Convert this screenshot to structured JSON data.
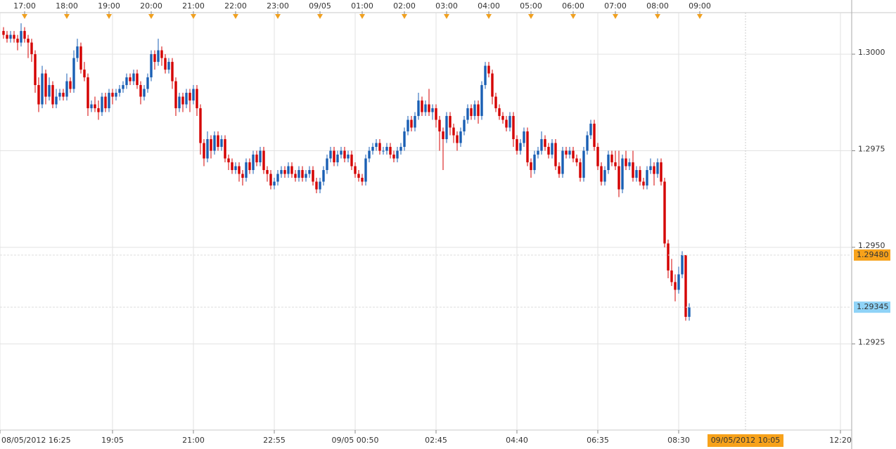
{
  "chart_data": {
    "type": "candlestick",
    "up_color": "#1a5fb4",
    "down_color": "#d40000",
    "grid": true,
    "xlim": [
      -1,
      240
    ],
    "ylim": [
      1.29027,
      1.30082
    ],
    "yticks": [
      {
        "value": 1.3,
        "label": "1.3000"
      },
      1.2975,
      {
        "value": 1.295,
        "label": "1.2950"
      },
      1.2925
    ],
    "xticks": [
      {
        "value": -1,
        "label": "08/05/2012 16:25"
      },
      {
        "value": 31,
        "label": "19:05"
      },
      {
        "value": 54,
        "label": "21:00"
      },
      {
        "value": 77,
        "label": "22:55"
      },
      {
        "value": 100,
        "label": "09/05 00:50"
      },
      {
        "value": 123,
        "label": "02:45"
      },
      {
        "value": 146,
        "label": "04:40"
      },
      {
        "value": 169,
        "label": "06:35"
      },
      {
        "value": 192,
        "label": "08:30"
      },
      {
        "value": 238,
        "label": "12:20"
      }
    ],
    "top_xticks": [
      {
        "value": 6,
        "label": "17:00"
      },
      {
        "value": 18,
        "label": "18:00"
      },
      {
        "value": 30,
        "label": "19:00"
      },
      {
        "value": 42,
        "label": "20:00"
      },
      {
        "value": 54,
        "label": "21:00"
      },
      {
        "value": 66,
        "label": "22:00"
      },
      {
        "value": 78,
        "label": "23:00"
      },
      {
        "value": 90,
        "label": "09/05"
      },
      {
        "value": 102,
        "label": "01:00"
      },
      {
        "value": 114,
        "label": "02:00"
      },
      {
        "value": 126,
        "label": "03:00"
      },
      {
        "value": 138,
        "label": "04:00"
      },
      {
        "value": 150,
        "label": "05:00"
      },
      {
        "value": 162,
        "label": "06:00"
      },
      {
        "value": 174,
        "label": "07:00"
      },
      {
        "value": 186,
        "label": "08:00"
      },
      {
        "value": 198,
        "label": "09:00"
      }
    ],
    "price_tags": [
      {
        "value": 1.2948,
        "label": "1.29480",
        "color": "#f7a21b"
      },
      {
        "value": 1.29345,
        "label": "1.29345",
        "color": "#8fd3f7"
      }
    ],
    "time_marker": {
      "value": 211,
      "label": "09/05/2012 10:05",
      "color": "#f7a21b"
    },
    "ohlc": [
      [
        1.3006,
        1.3007,
        1.3004,
        1.3005
      ],
      [
        1.3005,
        1.3006,
        1.3003,
        1.3004
      ],
      [
        1.3004,
        1.3006,
        1.3003,
        1.3005
      ],
      [
        1.3005,
        1.3006,
        1.3003,
        1.3004
      ],
      [
        1.3004,
        1.3005,
        1.3001,
        1.3003
      ],
      [
        1.3003,
        1.3008,
        1.3002,
        1.3006
      ],
      [
        1.3006,
        1.3007,
        1.3003,
        1.3004
      ],
      [
        1.3004,
        1.3005,
        1.2999,
        1.3003
      ],
      [
        1.3003,
        1.3004,
        1.2998,
        1.3
      ],
      [
        1.3,
        1.3001,
        1.299,
        1.2992
      ],
      [
        1.2992,
        1.2994,
        1.2985,
        1.2987
      ],
      [
        1.2987,
        1.2997,
        1.2986,
        1.2995
      ],
      [
        1.2995,
        1.2996,
        1.2987,
        1.2989
      ],
      [
        1.2989,
        1.2994,
        1.2988,
        1.2992
      ],
      [
        1.2992,
        1.2993,
        1.2986,
        1.2987
      ],
      [
        1.2987,
        1.2991,
        1.2986,
        1.2989
      ],
      [
        1.2989,
        1.2991,
        1.2988,
        1.299
      ],
      [
        1.299,
        1.2991,
        1.2988,
        1.2989
      ],
      [
        1.2989,
        1.2995,
        1.2988,
        1.2993
      ],
      [
        1.2993,
        1.2994,
        1.299,
        1.2991
      ],
      [
        1.2991,
        1.3001,
        1.299,
        1.2999
      ],
      [
        1.2999,
        1.3004,
        1.2998,
        1.3002
      ],
      [
        1.3002,
        1.3003,
        1.2995,
        1.2996
      ],
      [
        1.2996,
        1.2998,
        1.2993,
        1.2994
      ],
      [
        1.2994,
        1.2995,
        1.2984,
        1.2986
      ],
      [
        1.2986,
        1.2988,
        1.2985,
        1.2987
      ],
      [
        1.2987,
        1.2989,
        1.2985,
        1.2986
      ],
      [
        1.2986,
        1.2988,
        1.2983,
        1.2985
      ],
      [
        1.2985,
        1.299,
        1.2984,
        1.2989
      ],
      [
        1.2989,
        1.299,
        1.2985,
        1.2986
      ],
      [
        1.2986,
        1.2991,
        1.2985,
        1.299
      ],
      [
        1.299,
        1.2991,
        1.2987,
        1.2989
      ],
      [
        1.2989,
        1.2991,
        1.2988,
        1.299
      ],
      [
        1.299,
        1.2992,
        1.2989,
        1.2991
      ],
      [
        1.2991,
        1.2993,
        1.299,
        1.2992
      ],
      [
        1.2992,
        1.2995,
        1.2991,
        1.2994
      ],
      [
        1.2994,
        1.2995,
        1.2992,
        1.2993
      ],
      [
        1.2993,
        1.2996,
        1.2992,
        1.2995
      ],
      [
        1.2995,
        1.2996,
        1.2991,
        1.2992
      ],
      [
        1.2992,
        1.2993,
        1.2987,
        1.2989
      ],
      [
        1.2989,
        1.2992,
        1.2988,
        1.2991
      ],
      [
        1.2991,
        1.2995,
        1.299,
        1.2994
      ],
      [
        1.2994,
        1.3001,
        1.2993,
        1.3
      ],
      [
        1.3,
        1.3001,
        1.2996,
        1.2998
      ],
      [
        1.2998,
        1.3004,
        1.2997,
        1.3001
      ],
      [
        1.3001,
        1.3002,
        1.2997,
        1.2999
      ],
      [
        1.2999,
        1.3,
        1.2995,
        1.2996
      ],
      [
        1.2996,
        1.2999,
        1.2995,
        1.2998
      ],
      [
        1.2998,
        1.2999,
        1.2991,
        1.2993
      ],
      [
        1.2993,
        1.2994,
        1.2984,
        1.2986
      ],
      [
        1.2986,
        1.299,
        1.2985,
        1.2989
      ],
      [
        1.2989,
        1.299,
        1.2985,
        1.2987
      ],
      [
        1.2987,
        1.2991,
        1.2986,
        1.299
      ],
      [
        1.299,
        1.2991,
        1.2985,
        1.2988
      ],
      [
        1.2988,
        1.2992,
        1.2987,
        1.2991
      ],
      [
        1.2991,
        1.2992,
        1.2984,
        1.2986
      ],
      [
        1.2986,
        1.2987,
        1.2974,
        1.2977
      ],
      [
        1.2977,
        1.2978,
        1.2971,
        1.2973
      ],
      [
        1.2973,
        1.298,
        1.2972,
        1.2978
      ],
      [
        1.2978,
        1.2979,
        1.2973,
        1.2975
      ],
      [
        1.2975,
        1.298,
        1.2974,
        1.2979
      ],
      [
        1.2979,
        1.298,
        1.2975,
        1.2976
      ],
      [
        1.2976,
        1.2979,
        1.2975,
        1.2978
      ],
      [
        1.2978,
        1.2979,
        1.2972,
        1.2973
      ],
      [
        1.2973,
        1.2974,
        1.297,
        1.2972
      ],
      [
        1.2972,
        1.2973,
        1.2969,
        1.297
      ],
      [
        1.297,
        1.2972,
        1.2969,
        1.2971
      ],
      [
        1.2971,
        1.2972,
        1.2967,
        1.2969
      ],
      [
        1.2969,
        1.297,
        1.2966,
        1.2968
      ],
      [
        1.2968,
        1.2973,
        1.2967,
        1.2972
      ],
      [
        1.2972,
        1.2973,
        1.2969,
        1.297
      ],
      [
        1.297,
        1.2975,
        1.2969,
        1.2974
      ],
      [
        1.2974,
        1.2975,
        1.2971,
        1.2972
      ],
      [
        1.2972,
        1.2976,
        1.2971,
        1.2975
      ],
      [
        1.2975,
        1.2976,
        1.2969,
        1.297
      ],
      [
        1.297,
        1.2971,
        1.2967,
        1.2969
      ],
      [
        1.2969,
        1.297,
        1.2965,
        1.2966
      ],
      [
        1.2966,
        1.2968,
        1.2965,
        1.2967
      ],
      [
        1.2967,
        1.297,
        1.2966,
        1.2969
      ],
      [
        1.2969,
        1.2971,
        1.2968,
        1.297
      ],
      [
        1.297,
        1.2971,
        1.2968,
        1.2969
      ],
      [
        1.2969,
        1.2972,
        1.2968,
        1.2971
      ],
      [
        1.2971,
        1.2972,
        1.2968,
        1.2969
      ],
      [
        1.2969,
        1.297,
        1.2967,
        1.2968
      ],
      [
        1.2968,
        1.2971,
        1.2967,
        1.297
      ],
      [
        1.297,
        1.2971,
        1.2967,
        1.2968
      ],
      [
        1.2968,
        1.297,
        1.2967,
        1.2969
      ],
      [
        1.2969,
        1.2971,
        1.2968,
        1.297
      ],
      [
        1.297,
        1.2971,
        1.2966,
        1.2967
      ],
      [
        1.2967,
        1.2968,
        1.2964,
        1.2965
      ],
      [
        1.2965,
        1.2968,
        1.2964,
        1.2967
      ],
      [
        1.2967,
        1.2971,
        1.2966,
        1.297
      ],
      [
        1.297,
        1.2974,
        1.2969,
        1.2973
      ],
      [
        1.2973,
        1.2976,
        1.2972,
        1.2975
      ],
      [
        1.2975,
        1.2976,
        1.2971,
        1.2972
      ],
      [
        1.2972,
        1.2975,
        1.2971,
        1.2974
      ],
      [
        1.2974,
        1.2976,
        1.2973,
        1.2975
      ],
      [
        1.2975,
        1.2976,
        1.2972,
        1.2973
      ],
      [
        1.2973,
        1.2975,
        1.2972,
        1.2974
      ],
      [
        1.2974,
        1.2975,
        1.297,
        1.2971
      ],
      [
        1.2971,
        1.2972,
        1.2968,
        1.2969
      ],
      [
        1.2969,
        1.297,
        1.2967,
        1.2968
      ],
      [
        1.2968,
        1.2969,
        1.2966,
        1.2967
      ],
      [
        1.2967,
        1.2974,
        1.2966,
        1.2973
      ],
      [
        1.2973,
        1.2976,
        1.2972,
        1.2975
      ],
      [
        1.2975,
        1.2977,
        1.2974,
        1.2976
      ],
      [
        1.2976,
        1.2978,
        1.2975,
        1.2977
      ],
      [
        1.2977,
        1.2978,
        1.2974,
        1.2975
      ],
      [
        1.2975,
        1.2976,
        1.2974,
        1.2975
      ],
      [
        1.2975,
        1.2977,
        1.2974,
        1.2976
      ],
      [
        1.2976,
        1.2977,
        1.2973,
        1.2974
      ],
      [
        1.2974,
        1.2975,
        1.2972,
        1.2973
      ],
      [
        1.2973,
        1.2976,
        1.2972,
        1.2975
      ],
      [
        1.2975,
        1.2977,
        1.2974,
        1.2976
      ],
      [
        1.2976,
        1.2981,
        1.2975,
        1.298
      ],
      [
        1.298,
        1.2984,
        1.2979,
        1.2983
      ],
      [
        1.2983,
        1.2984,
        1.298,
        1.2981
      ],
      [
        1.2981,
        1.2985,
        1.298,
        1.2984
      ],
      [
        1.2984,
        1.299,
        1.2983,
        1.2988
      ],
      [
        1.2988,
        1.2989,
        1.2984,
        1.2985
      ],
      [
        1.2985,
        1.2988,
        1.2984,
        1.2987
      ],
      [
        1.2987,
        1.2991,
        1.2984,
        1.2985
      ],
      [
        1.2985,
        1.2987,
        1.2983,
        1.2986
      ],
      [
        1.2986,
        1.2987,
        1.2981,
        1.2983
      ],
      [
        1.2983,
        1.2984,
        1.2975,
        1.298
      ],
      [
        1.298,
        1.2981,
        1.297,
        1.2978
      ],
      [
        1.2978,
        1.2985,
        1.2977,
        1.2984
      ],
      [
        1.2984,
        1.2985,
        1.2979,
        1.2981
      ],
      [
        1.2981,
        1.2982,
        1.2977,
        1.2979
      ],
      [
        1.2979,
        1.298,
        1.2975,
        1.2977
      ],
      [
        1.2977,
        1.2981,
        1.2976,
        1.298
      ],
      [
        1.298,
        1.2984,
        1.2979,
        1.2983
      ],
      [
        1.2983,
        1.2987,
        1.2982,
        1.2986
      ],
      [
        1.2986,
        1.2987,
        1.2983,
        1.2984
      ],
      [
        1.2984,
        1.2988,
        1.2983,
        1.2987
      ],
      [
        1.2987,
        1.2988,
        1.2982,
        1.2984
      ],
      [
        1.2984,
        1.2993,
        1.2983,
        1.2992
      ],
      [
        1.2992,
        1.2998,
        1.2991,
        1.2997
      ],
      [
        1.2997,
        1.2998,
        1.2994,
        1.2995
      ],
      [
        1.2995,
        1.2996,
        1.2987,
        1.2989
      ],
      [
        1.2989,
        1.299,
        1.2985,
        1.2986
      ],
      [
        1.2986,
        1.2987,
        1.2983,
        1.2984
      ],
      [
        1.2984,
        1.2985,
        1.2982,
        1.2983
      ],
      [
        1.2983,
        1.2984,
        1.298,
        1.2981
      ],
      [
        1.2981,
        1.2985,
        1.298,
        1.2984
      ],
      [
        1.2984,
        1.2985,
        1.2976,
        1.2978
      ],
      [
        1.2978,
        1.2979,
        1.2974,
        1.2975
      ],
      [
        1.2975,
        1.2978,
        1.2974,
        1.2977
      ],
      [
        1.2977,
        1.2981,
        1.2976,
        1.298
      ],
      [
        1.298,
        1.2981,
        1.2971,
        1.2972
      ],
      [
        1.2972,
        1.2973,
        1.2968,
        1.297
      ],
      [
        1.297,
        1.2975,
        1.2969,
        1.2974
      ],
      [
        1.2974,
        1.2976,
        1.2973,
        1.2975
      ],
      [
        1.2975,
        1.298,
        1.2974,
        1.2978
      ],
      [
        1.2978,
        1.2979,
        1.2975,
        1.2976
      ],
      [
        1.2976,
        1.2977,
        1.2973,
        1.2974
      ],
      [
        1.2974,
        1.2978,
        1.2973,
        1.2977
      ],
      [
        1.2977,
        1.2978,
        1.297,
        1.2971
      ],
      [
        1.2971,
        1.2972,
        1.2968,
        1.2969
      ],
      [
        1.2969,
        1.2976,
        1.2968,
        1.2975
      ],
      [
        1.2975,
        1.2976,
        1.2973,
        1.2974
      ],
      [
        1.2974,
        1.2976,
        1.2973,
        1.2975
      ],
      [
        1.2975,
        1.2976,
        1.2972,
        1.2973
      ],
      [
        1.2973,
        1.2974,
        1.2971,
        1.2972
      ],
      [
        1.2972,
        1.2973,
        1.2967,
        1.2968
      ],
      [
        1.2968,
        1.2976,
        1.2967,
        1.2975
      ],
      [
        1.2975,
        1.298,
        1.2974,
        1.2979
      ],
      [
        1.2979,
        1.2983,
        1.2978,
        1.2982
      ],
      [
        1.2982,
        1.2983,
        1.2975,
        1.2976
      ],
      [
        1.2976,
        1.2977,
        1.297,
        1.2971
      ],
      [
        1.2971,
        1.2972,
        1.2966,
        1.2967
      ],
      [
        1.2967,
        1.2971,
        1.2966,
        1.297
      ],
      [
        1.297,
        1.2975,
        1.2969,
        1.2974
      ],
      [
        1.2974,
        1.2975,
        1.2971,
        1.2972
      ],
      [
        1.2972,
        1.2975,
        1.297,
        1.2971
      ],
      [
        1.2971,
        1.2975,
        1.2963,
        1.2965
      ],
      [
        1.2965,
        1.2974,
        1.2964,
        1.2973
      ],
      [
        1.2973,
        1.2975,
        1.297,
        1.2971
      ],
      [
        1.2971,
        1.2973,
        1.297,
        1.2972
      ],
      [
        1.2972,
        1.2975,
        1.2967,
        1.2968
      ],
      [
        1.2968,
        1.2971,
        1.2967,
        1.297
      ],
      [
        1.297,
        1.2971,
        1.2966,
        1.2967
      ],
      [
        1.2967,
        1.2968,
        1.2965,
        1.2966
      ],
      [
        1.2966,
        1.2971,
        1.2965,
        1.297
      ],
      [
        1.297,
        1.2973,
        1.2969,
        1.2971
      ],
      [
        1.2971,
        1.2972,
        1.2966,
        1.2969
      ],
      [
        1.2969,
        1.2973,
        1.2968,
        1.2972
      ],
      [
        1.2972,
        1.2973,
        1.2966,
        1.2967
      ],
      [
        1.2967,
        1.2968,
        1.295,
        1.2951
      ],
      [
        1.2951,
        1.2952,
        1.2942,
        1.2944
      ],
      [
        1.2944,
        1.2947,
        1.294,
        1.2941
      ],
      [
        1.2941,
        1.2943,
        1.2936,
        1.2939
      ],
      [
        1.2939,
        1.2945,
        1.2938,
        1.2943
      ],
      [
        1.2943,
        1.2949,
        1.2942,
        1.2948
      ],
      [
        1.2948,
        1.2948,
        1.2931,
        1.2932
      ],
      [
        1.2932,
        1.29355,
        1.2931,
        1.29345
      ]
    ]
  }
}
